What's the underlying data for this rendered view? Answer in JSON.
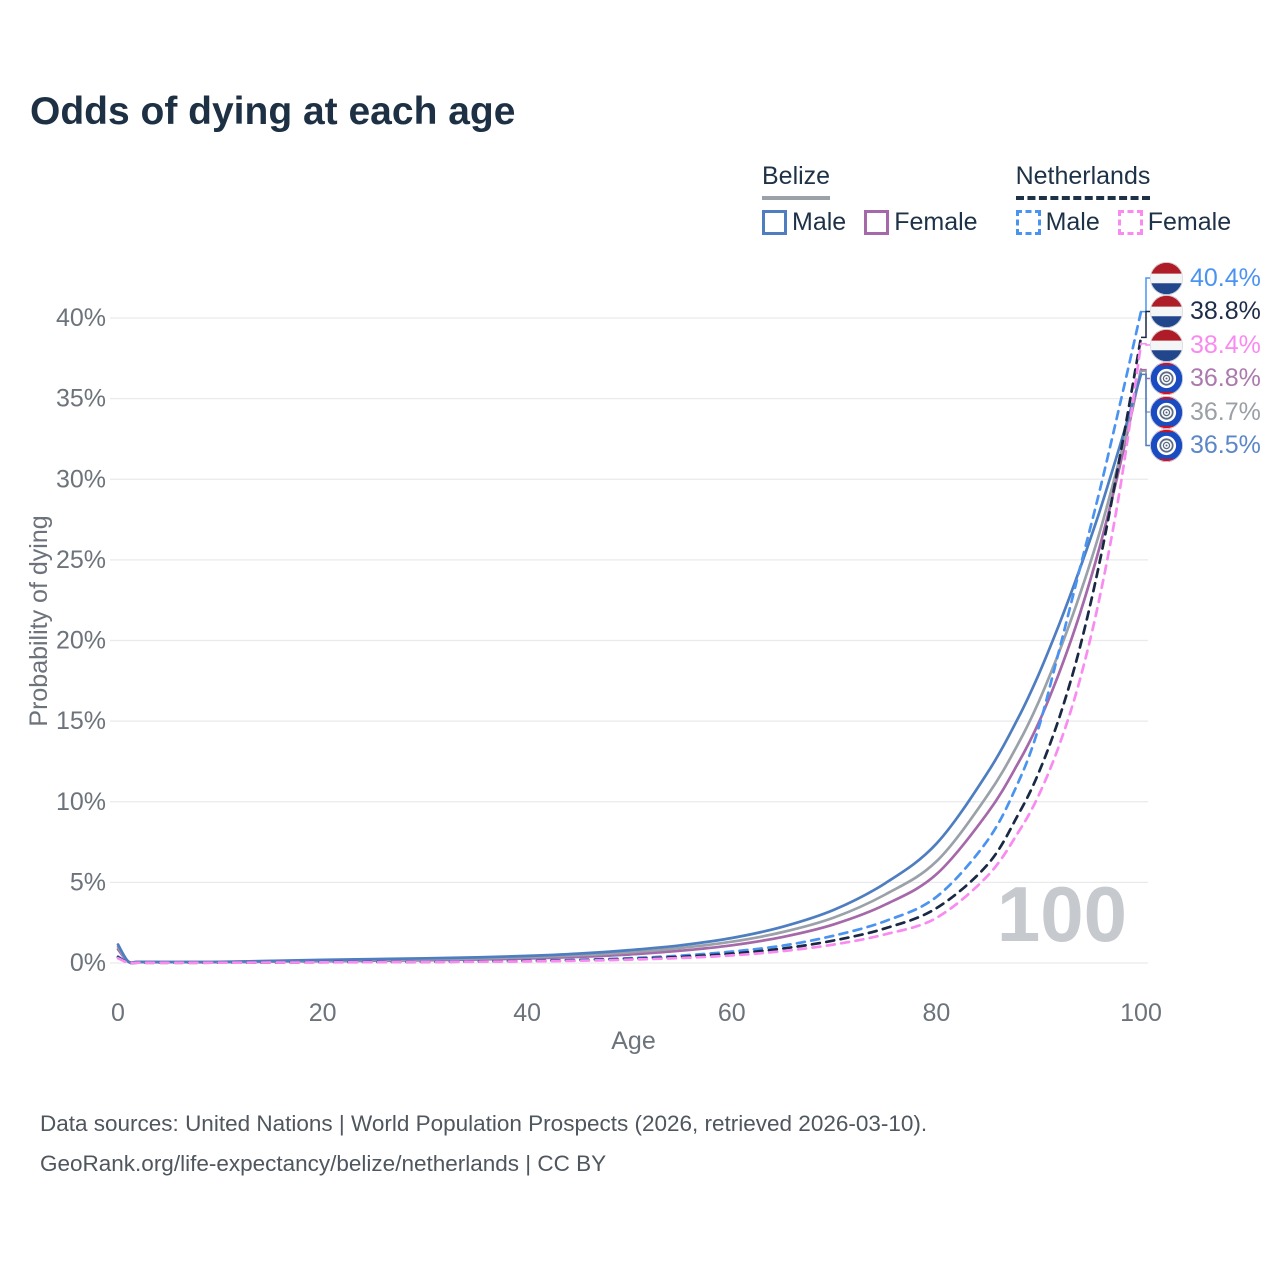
{
  "title": "Odds of dying at each age",
  "watermark": "100",
  "legend": {
    "groups": [
      {
        "country": "Belize",
        "line_style": "solid",
        "underline_color": "#9aa1a8",
        "items": [
          {
            "label": "Male",
            "color": "#4e7dc0",
            "dashed": false
          },
          {
            "label": "Female",
            "color": "#a568a9",
            "dashed": false
          }
        ]
      },
      {
        "country": "Netherlands",
        "line_style": "dashed",
        "underline_color": "#1d3147",
        "items": [
          {
            "label": "Male",
            "color": "#4b93f0",
            "dashed": true
          },
          {
            "label": "Female",
            "color": "#f98af0",
            "dashed": true
          }
        ]
      }
    ]
  },
  "chart_data": {
    "type": "line",
    "title": "Odds of dying at each age",
    "xlabel": "Age",
    "ylabel": "Probability of dying",
    "xlim": [
      0,
      100
    ],
    "ylim": [
      0,
      42
    ],
    "x_ticks": [
      0,
      20,
      40,
      60,
      80,
      100
    ],
    "y_ticks": [
      "0%",
      "5%",
      "10%",
      "15%",
      "20%",
      "25%",
      "30%",
      "35%",
      "40%"
    ],
    "grid": "horizontal",
    "gridline_color": "#e9eaec",
    "tick_color": "#6d737b",
    "watermark_color": "#c6c9ce",
    "x": [
      0,
      1,
      2,
      5,
      10,
      15,
      20,
      25,
      30,
      35,
      40,
      45,
      50,
      55,
      60,
      65,
      70,
      75,
      80,
      85,
      88,
      90,
      92,
      94,
      96,
      98,
      100
    ],
    "series": [
      {
        "name": "Netherlands Male",
        "country": "Netherlands",
        "sex": "Male",
        "flag": "netherlands",
        "color": "#4b93f0",
        "dashed": true,
        "end_label": "40.4%",
        "end_label_color": "#4b93f0",
        "values": [
          0.4,
          0.03,
          0.02,
          0.02,
          0.02,
          0.04,
          0.06,
          0.07,
          0.08,
          0.1,
          0.14,
          0.2,
          0.3,
          0.46,
          0.71,
          1.08,
          1.7,
          2.6,
          4.1,
          7.6,
          11.2,
          14.6,
          19.4,
          24.4,
          29.4,
          34.8,
          40.4
        ]
      },
      {
        "name": "Netherlands Both sexes",
        "country": "Netherlands",
        "sex": "Both",
        "flag": "netherlands",
        "color": "#1a2844",
        "dashed": true,
        "end_label": "38.8%",
        "end_label_color": "#1d2c49",
        "values": [
          0.35,
          0.03,
          0.02,
          0.01,
          0.02,
          0.03,
          0.05,
          0.06,
          0.07,
          0.09,
          0.12,
          0.17,
          0.25,
          0.38,
          0.58,
          0.9,
          1.4,
          2.15,
          3.4,
          6.1,
          9.2,
          11.8,
          15.2,
          19.5,
          25.0,
          31.6,
          38.8
        ]
      },
      {
        "name": "Netherlands Female",
        "country": "Netherlands",
        "sex": "Female",
        "flag": "netherlands",
        "color": "#f98af0",
        "dashed": true,
        "end_label": "38.4%",
        "end_label_color": "#f98af0",
        "values": [
          0.3,
          0.02,
          0.02,
          0.01,
          0.02,
          0.03,
          0.04,
          0.05,
          0.06,
          0.08,
          0.1,
          0.14,
          0.21,
          0.31,
          0.47,
          0.74,
          1.15,
          1.78,
          2.8,
          5.4,
          8.1,
          10.4,
          13.5,
          17.5,
          22.8,
          29.6,
          38.4
        ]
      },
      {
        "name": "Belize Female",
        "country": "Belize",
        "sex": "Female",
        "flag": "belize",
        "color": "#a568a9",
        "dashed": false,
        "end_label": "36.8%",
        "end_label_color": "#ab79ae",
        "values": [
          0.85,
          0.08,
          0.05,
          0.05,
          0.05,
          0.08,
          0.11,
          0.14,
          0.17,
          0.22,
          0.28,
          0.38,
          0.53,
          0.76,
          1.1,
          1.62,
          2.4,
          3.62,
          5.5,
          9.3,
          12.4,
          14.9,
          18.0,
          21.6,
          25.9,
          31.0,
          36.8
        ]
      },
      {
        "name": "Belize Both sexes",
        "country": "Belize",
        "sex": "Both",
        "flag": "belize",
        "color": "#9ba1a9",
        "dashed": false,
        "end_label": "36.7%",
        "end_label_color": "#9aa0a6",
        "values": [
          1.0,
          0.09,
          0.06,
          0.05,
          0.06,
          0.1,
          0.15,
          0.19,
          0.23,
          0.28,
          0.36,
          0.48,
          0.66,
          0.93,
          1.32,
          1.92,
          2.82,
          4.25,
          6.3,
          10.4,
          13.6,
          16.2,
          19.3,
          22.8,
          26.8,
          31.5,
          36.7
        ]
      },
      {
        "name": "Belize Male",
        "country": "Belize",
        "sex": "Male",
        "flag": "belize",
        "color": "#4e7dc0",
        "dashed": false,
        "end_label": "36.5%",
        "end_label_color": "#5b86c8",
        "values": [
          1.15,
          0.1,
          0.07,
          0.06,
          0.07,
          0.13,
          0.19,
          0.24,
          0.29,
          0.35,
          0.44,
          0.58,
          0.8,
          1.1,
          1.55,
          2.25,
          3.3,
          4.95,
          7.4,
          11.8,
          15.2,
          17.9,
          21.0,
          24.4,
          28.1,
          32.2,
          36.5
        ]
      }
    ]
  },
  "footer": {
    "line1": "Data sources: United Nations | World Population Prospects (2026, retrieved 2026-03-10).",
    "line2": "GeoRank.org/life-expectancy/belize/netherlands | CC BY"
  }
}
